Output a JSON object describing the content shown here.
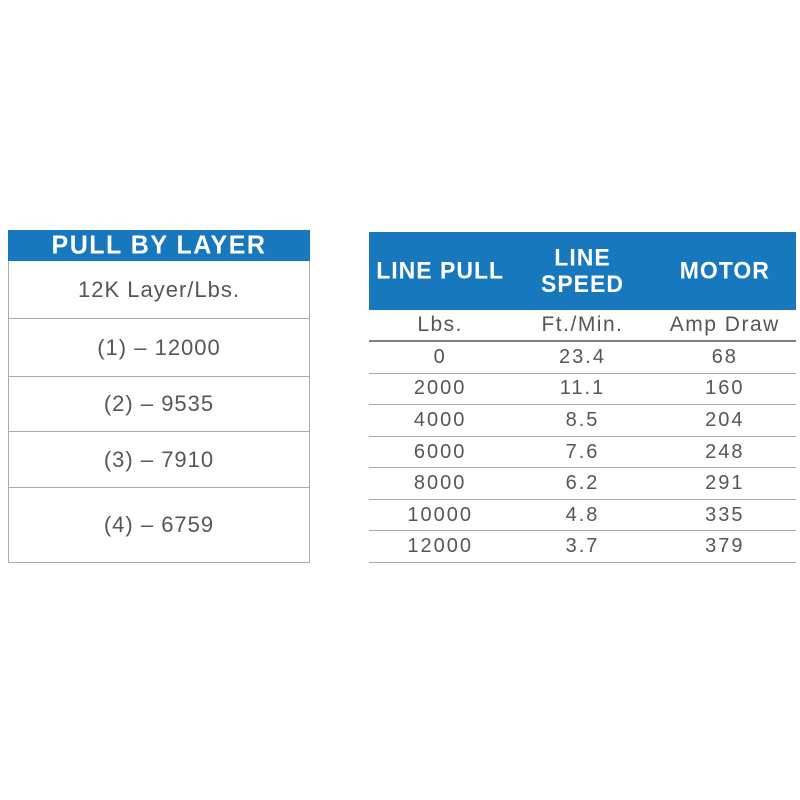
{
  "colors": {
    "accent_blue": "#1878BE",
    "header_text": "#FFFFFF",
    "body_text": "#54565A",
    "border_light": "#A9ABAE",
    "border_dark": "#7D7F82"
  },
  "pull_by_layer": {
    "title": "PULL BY LAYER",
    "subtitle": "12K Layer/Lbs.",
    "rows": [
      "(1) – 12000",
      "(2) – 9535",
      "(3) – 7910",
      "(4) – 6759"
    ]
  },
  "performance": {
    "columns": [
      {
        "label": "LINE PULL",
        "unit": "Lbs."
      },
      {
        "label": "LINE\nSPEED",
        "unit": "Ft./Min."
      },
      {
        "label": "MOTOR",
        "unit": "Amp Draw"
      }
    ],
    "rows": [
      [
        "0",
        "23.4",
        "68"
      ],
      [
        "2000",
        "11.1",
        "160"
      ],
      [
        "4000",
        "8.5",
        "204"
      ],
      [
        "6000",
        "7.6",
        "248"
      ],
      [
        "8000",
        "6.2",
        "291"
      ],
      [
        "10000",
        "4.8",
        "335"
      ],
      [
        "12000",
        "3.7",
        "379"
      ]
    ]
  }
}
